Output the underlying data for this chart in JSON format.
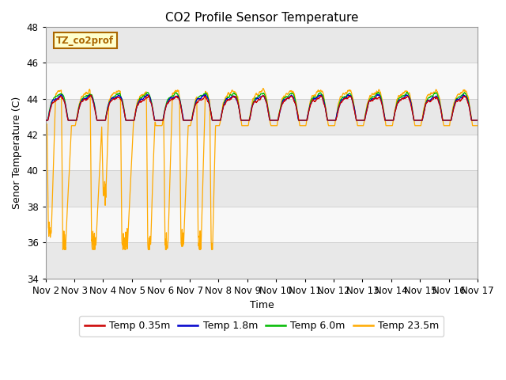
{
  "title": "CO2 Profile Sensor Temperature",
  "xlabel": "Time",
  "ylabel": "Senor Temperature (C)",
  "ylim": [
    34,
    48
  ],
  "yticks": [
    34,
    36,
    38,
    40,
    42,
    44,
    46,
    48
  ],
  "xstart": 2,
  "xend": 17,
  "xtick_labels": [
    "Nov 2",
    "Nov 3",
    "Nov 4",
    "Nov 5",
    "Nov 6",
    "Nov 7",
    "Nov 8",
    "Nov 9",
    "Nov 10",
    "Nov 11",
    "Nov 12",
    "Nov 13",
    "Nov 14",
    "Nov 15",
    "Nov 16",
    "Nov 17"
  ],
  "colors": {
    "red": "#cc0000",
    "blue": "#0000cc",
    "green": "#00bb00",
    "orange": "#ffaa00"
  },
  "legend_labels": [
    "Temp 0.35m",
    "Temp 1.8m",
    "Temp 6.0m",
    "Temp 23.5m"
  ],
  "annotation_text": "TZ_co2prof",
  "annotation_bg": "#ffffcc",
  "annotation_border": "#aa6600",
  "bg_even": "#e8e8e8",
  "bg_odd": "#f8f8f8",
  "plot_bg": "#ffffff",
  "grid_color": "#cccccc",
  "seed": 42
}
